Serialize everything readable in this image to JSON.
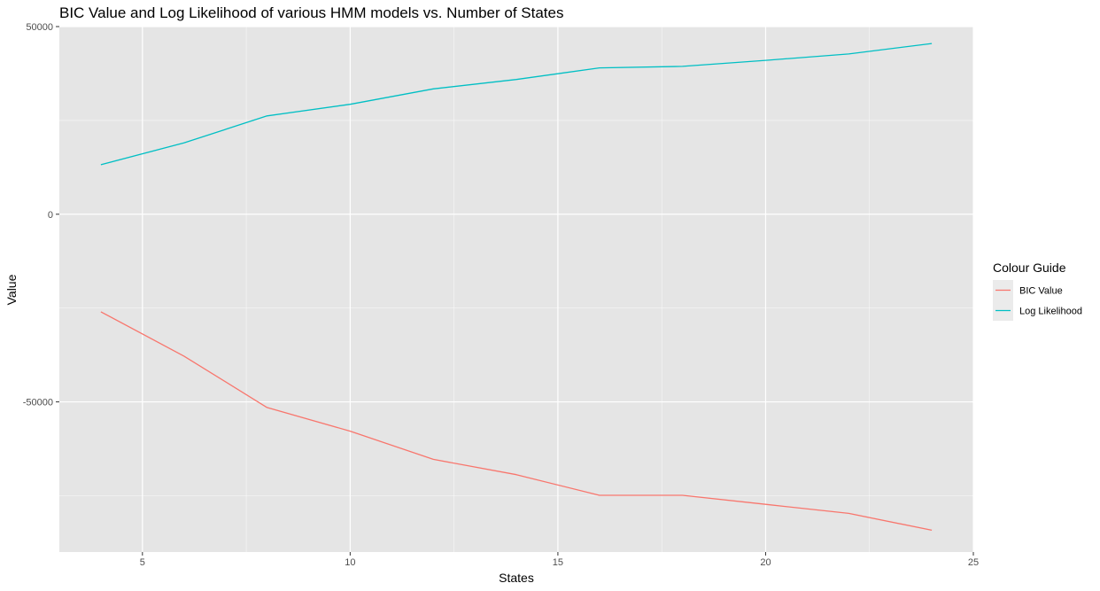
{
  "chart_data": {
    "type": "line",
    "title": "BIC Value and Log Likelihood of various HMM models vs. Number of States",
    "xlabel": "States",
    "ylabel": "Value",
    "xlim": [
      3,
      25
    ],
    "ylim": [
      -90000,
      50000
    ],
    "x_ticks": [
      5,
      10,
      15,
      20,
      25
    ],
    "x_tick_labels": [
      "5",
      "10",
      "15",
      "20",
      "25"
    ],
    "x_minor_ticks": [
      7.5,
      12.5,
      17.5,
      22.5
    ],
    "y_ticks": [
      50000,
      0,
      -50000
    ],
    "y_tick_labels": [
      "50000",
      "0",
      "-50000"
    ],
    "y_minor_ticks": [
      25000,
      -25000,
      -75000
    ],
    "grid": true,
    "legend": {
      "title": "Colour Guide",
      "position": "right"
    },
    "x": [
      4,
      6,
      8,
      10,
      12,
      14,
      16,
      18,
      20,
      22,
      24
    ],
    "series": [
      {
        "name": "BIC Value",
        "color": "#f8766d",
        "values": [
          -26000,
          -37800,
          -51500,
          -57800,
          -65300,
          -69400,
          -74900,
          -74900,
          -77300,
          -79700,
          -84200
        ]
      },
      {
        "name": "Log Likelihood",
        "color": "#00bfc4",
        "values": [
          13200,
          19000,
          26200,
          29300,
          33400,
          35900,
          39000,
          39400,
          41000,
          42700,
          45500
        ]
      }
    ]
  },
  "colors": {
    "panel_background": "#e5e5e5",
    "grid_major": "#ffffff",
    "legend_key_background": "#ebebeb"
  }
}
